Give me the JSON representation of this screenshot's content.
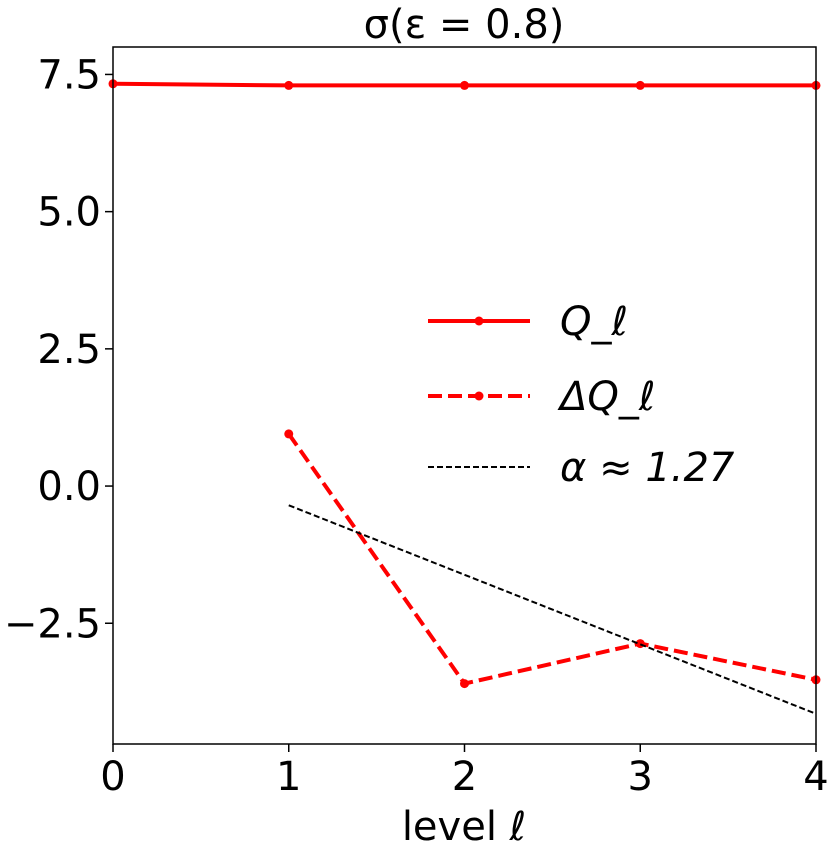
{
  "chart_data": {
    "type": "line",
    "title": "σ(ε = 0.8)",
    "xlabel": "level ℓ",
    "ylabel": "",
    "xlim": [
      0,
      4
    ],
    "ylim": [
      -4.7,
      8.0
    ],
    "xticks": [
      0,
      1,
      2,
      3,
      4
    ],
    "xtick_labels": [
      "0",
      "1",
      "2",
      "3",
      "4"
    ],
    "yticks": [
      -2.5,
      0.0,
      2.5,
      5.0,
      7.5
    ],
    "ytick_labels": [
      "−2.5",
      "0.0",
      "2.5",
      "5.0",
      "7.5"
    ],
    "grid": false,
    "legend_position": "center-right",
    "series": [
      {
        "name": "Q_ℓ",
        "x": [
          0,
          1,
          2,
          3,
          4
        ],
        "values": [
          7.33,
          7.3,
          7.3,
          7.3,
          7.3
        ],
        "color": "#ff0000",
        "line_style": "solid",
        "marker": "circle"
      },
      {
        "name": "ΔQ_ℓ",
        "x": [
          1,
          2,
          3,
          4
        ],
        "values": [
          0.95,
          -3.6,
          -2.87,
          -3.53
        ],
        "color": "#ff0000",
        "line_style": "dashed",
        "marker": "circle"
      },
      {
        "name": "α ≈ 1.27",
        "x": [
          1,
          4
        ],
        "values": [
          -0.35,
          -4.15
        ],
        "color": "#000000",
        "line_style": "dashed",
        "marker": "none"
      }
    ]
  }
}
